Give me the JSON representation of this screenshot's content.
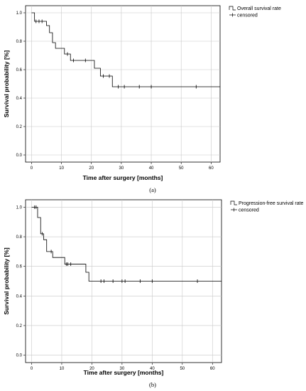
{
  "chart_data": [
    {
      "type": "line",
      "panel_label": "(a)",
      "xlabel": "Time after surgery [months]",
      "ylabel": "Survival probability [%]",
      "xlim": [
        -2,
        63
      ],
      "ylim": [
        -0.05,
        1.05
      ],
      "xticks": [
        0,
        10,
        20,
        30,
        40,
        50,
        60
      ],
      "yticks": [
        0.0,
        0.2,
        0.4,
        0.6,
        0.8,
        1.0
      ],
      "grid": true,
      "legend_position": "top-right",
      "legend": [
        "Overall survival rate",
        "censored"
      ],
      "series": [
        {
          "name": "Overall survival rate",
          "step_x": [
            0,
            1,
            5,
            6,
            7,
            8,
            11,
            13,
            21,
            23,
            27,
            63
          ],
          "step_y": [
            1.0,
            0.94,
            0.91,
            0.86,
            0.79,
            0.75,
            0.71,
            0.665,
            0.61,
            0.555,
            0.48,
            0.48
          ]
        },
        {
          "name": "censored",
          "x": [
            1.5,
            2.5,
            3.5,
            12,
            14,
            18,
            24,
            26,
            29,
            31,
            36,
            40,
            55
          ],
          "y": [
            0.94,
            0.94,
            0.94,
            0.71,
            0.665,
            0.665,
            0.555,
            0.555,
            0.48,
            0.48,
            0.48,
            0.48,
            0.48
          ]
        }
      ]
    },
    {
      "type": "line",
      "panel_label": "(b)",
      "xlabel": "Time after surgery [months]",
      "ylabel": "Survival probability [%]",
      "xlim": [
        -2,
        63
      ],
      "ylim": [
        -0.05,
        1.05
      ],
      "xticks": [
        0,
        10,
        20,
        30,
        40,
        50,
        60
      ],
      "yticks": [
        0.0,
        0.2,
        0.4,
        0.6,
        0.8,
        1.0
      ],
      "grid": true,
      "legend_position": "top-right",
      "legend": [
        "Progression-free survival rate",
        "censored"
      ],
      "series": [
        {
          "name": "Progression-free survival rate",
          "step_x": [
            0,
            2,
            3,
            4,
            5,
            7,
            11,
            18,
            19,
            63
          ],
          "step_y": [
            1.0,
            0.93,
            0.82,
            0.78,
            0.7,
            0.66,
            0.615,
            0.56,
            0.5,
            0.5
          ]
        },
        {
          "name": "censored",
          "x": [
            1,
            1.5,
            3.5,
            6.5,
            11.5,
            12,
            13,
            23,
            24,
            27,
            30,
            31,
            36,
            40,
            55
          ],
          "y": [
            1.0,
            1.0,
            0.82,
            0.7,
            0.615,
            0.615,
            0.615,
            0.5,
            0.5,
            0.5,
            0.5,
            0.5,
            0.5,
            0.5,
            0.5
          ]
        }
      ]
    }
  ]
}
